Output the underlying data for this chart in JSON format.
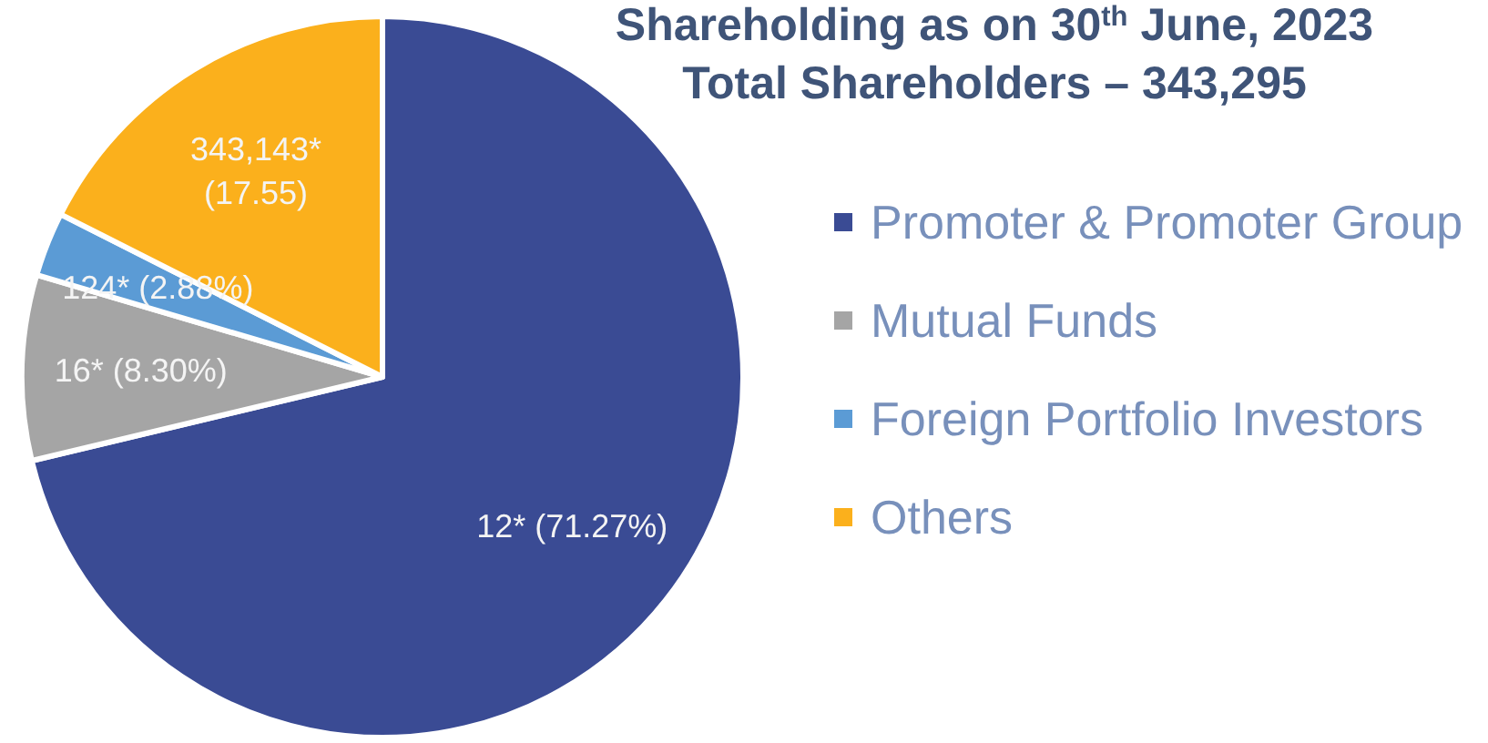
{
  "chart_data": {
    "type": "pie",
    "title": "Shareholding as on 30$^{th}$ June, 2023",
    "subtitle": "Total Shareholders – 343,295",
    "categories": [
      "Promoter & Promoter Group",
      "Mutual Funds",
      "Foreign Portfolio Investors",
      "Others"
    ],
    "values": [
      71.27,
      8.3,
      2.88,
      17.55
    ],
    "colors": [
      "#3a4b94",
      "#a5a5a5",
      "#5b9bd5",
      "#fbb01c"
    ],
    "value_labels": [
      "12* (71.27%)",
      "16* (8.30%)",
      "124* (2.88%)",
      "343,143*\n(17.55)"
    ],
    "legend": "right"
  }
}
